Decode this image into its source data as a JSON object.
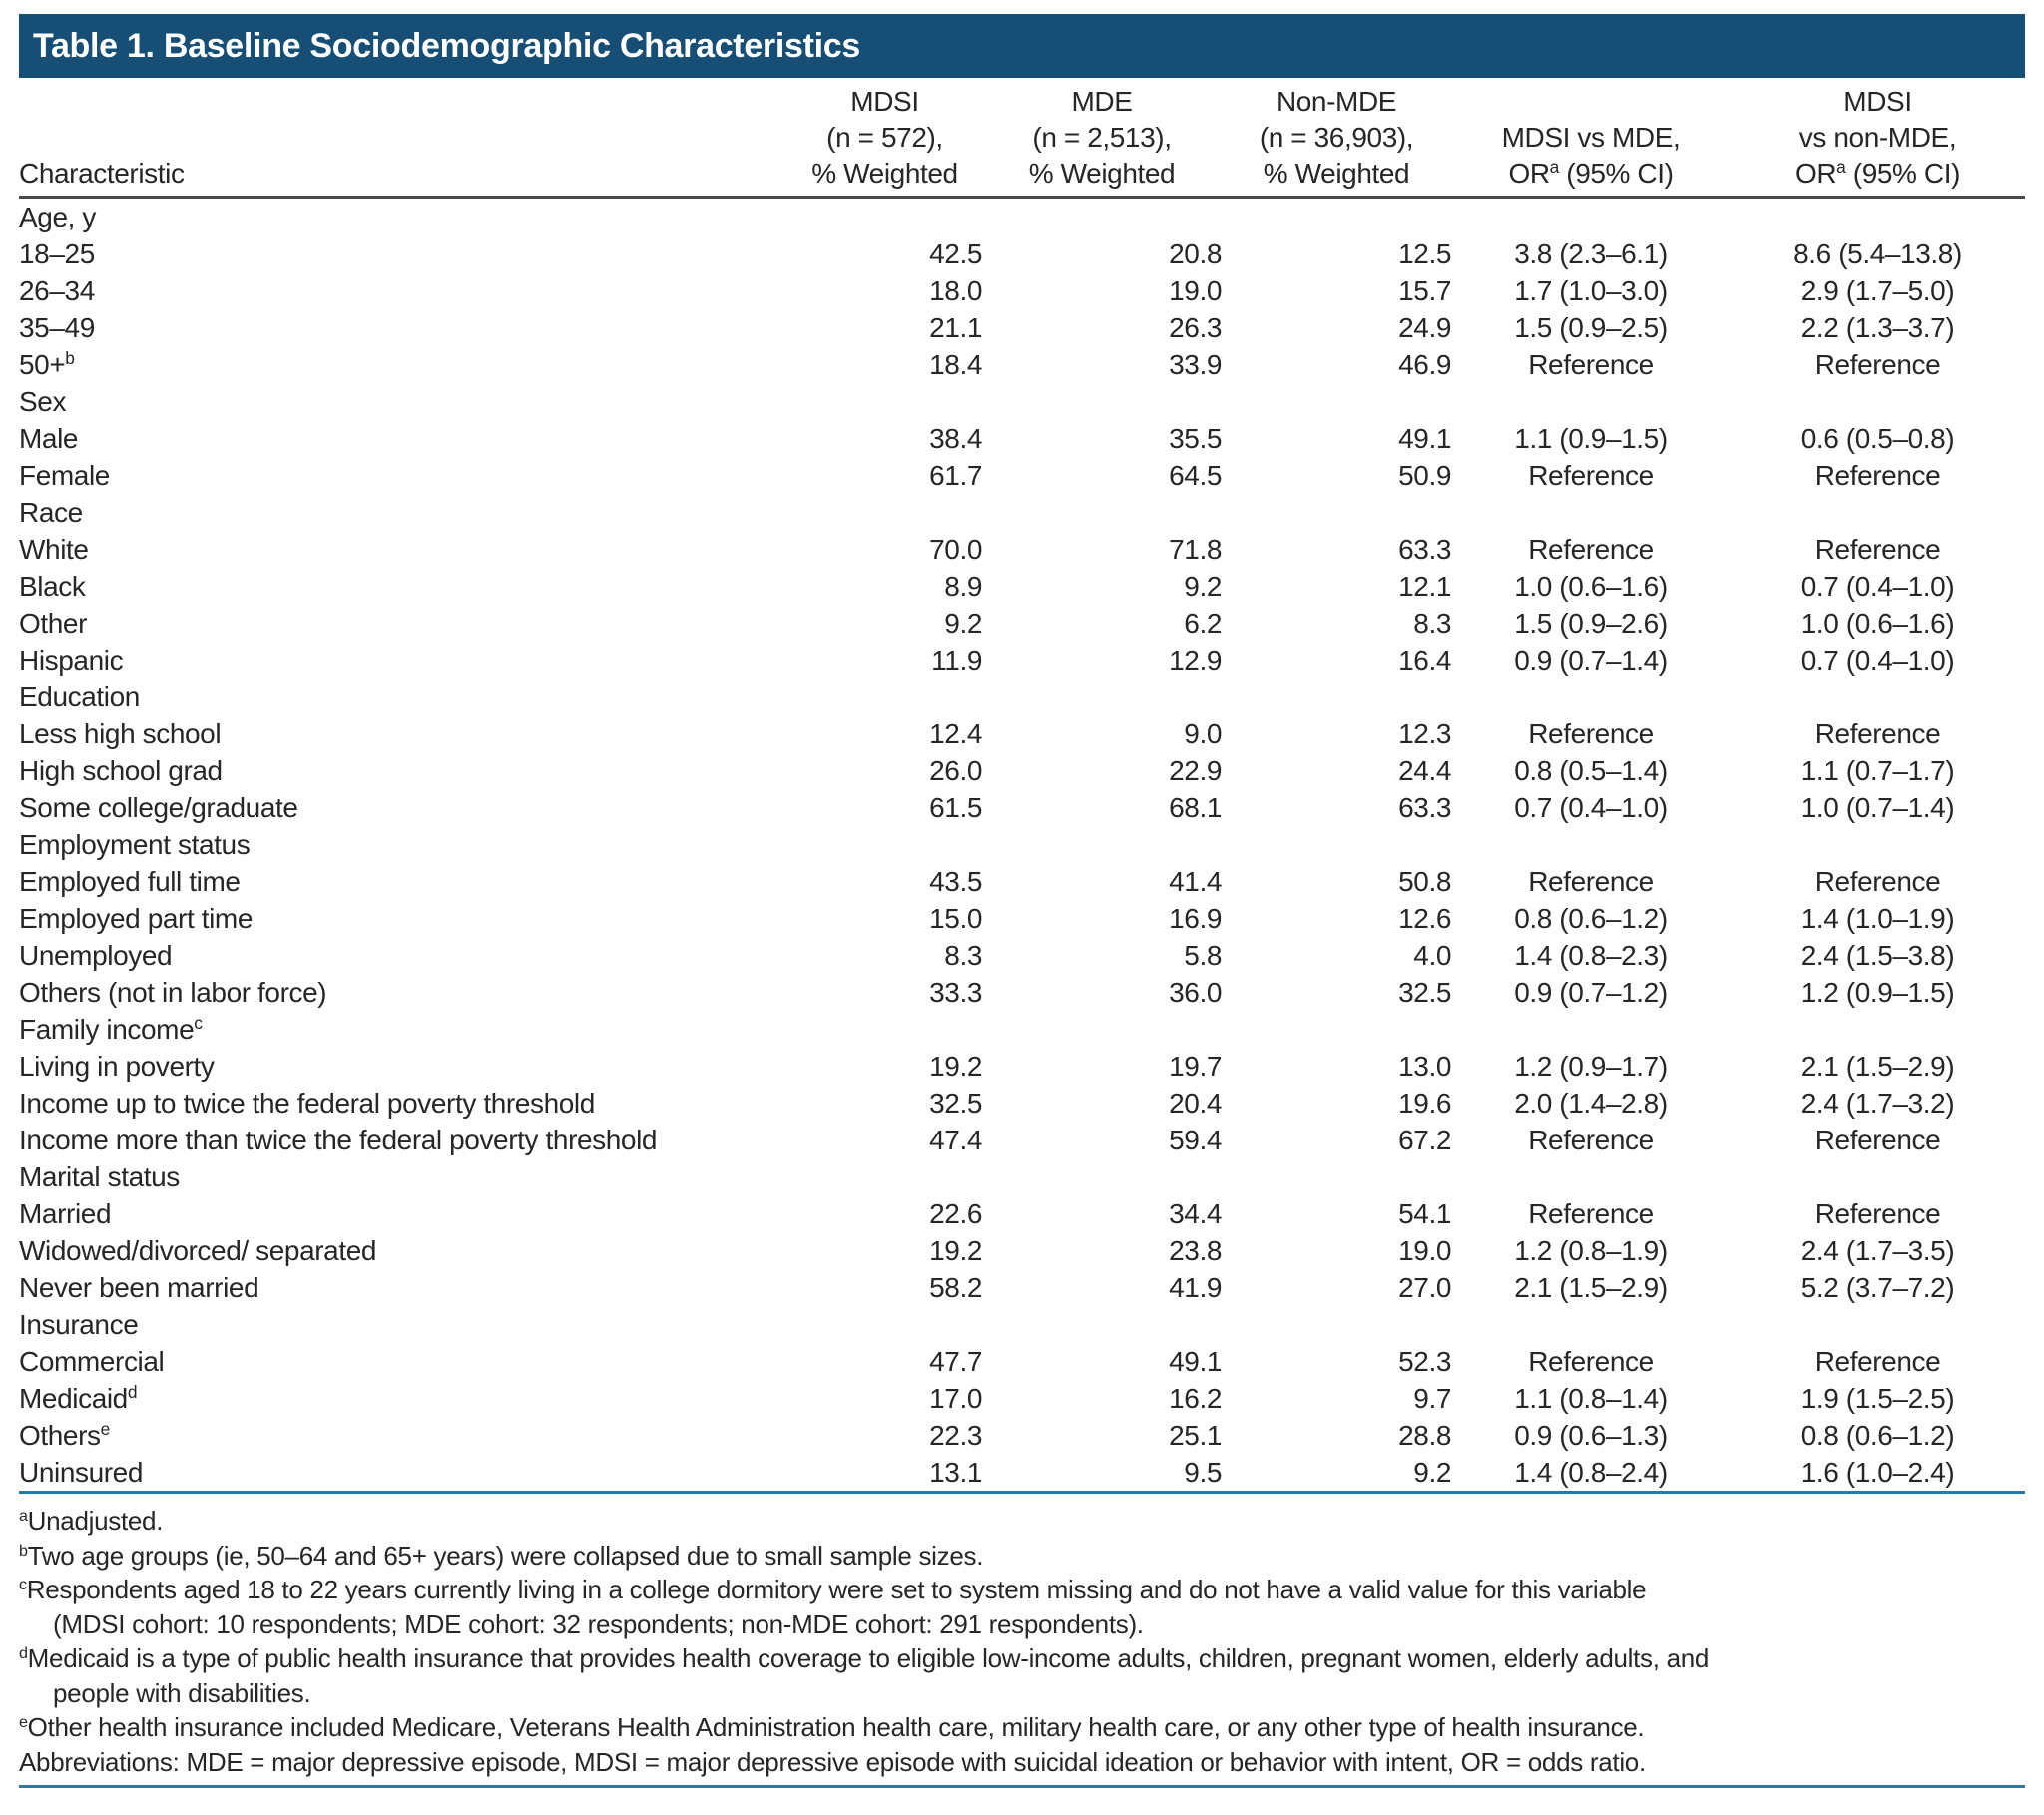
{
  "title": "Table 1. Baseline Sociodemographic Characteristics",
  "colors": {
    "header_bar": "#164e76",
    "rule_blue": "#2a7aa6",
    "rule_dark": "#4a4a4a",
    "text": "#262626"
  },
  "table": {
    "header": {
      "characteristic": "Characteristic",
      "columns": [
        {
          "name": "mdsi",
          "lines": [
            "MDSI",
            "(n = 572),",
            "% Weighted"
          ]
        },
        {
          "name": "mde",
          "lines": [
            "MDE",
            "(n = 2,513),",
            "% Weighted"
          ]
        },
        {
          "name": "non-mde",
          "lines": [
            "Non-MDE",
            "(n = 36,903),",
            "% Weighted"
          ]
        },
        {
          "name": "mdsi-vs-mde",
          "lines": [
            "MDSI vs MDE,",
            "OR^a (95% CI)"
          ]
        },
        {
          "name": "mdsi-vs-non-mde",
          "lines": [
            "MDSI",
            "vs non-MDE,",
            "OR^a (95% CI)"
          ]
        }
      ]
    },
    "sections": [
      {
        "label": "Age, y",
        "rows": [
          {
            "label": "18–25",
            "values": [
              "42.5",
              "20.8",
              "12.5",
              "3.8 (2.3–6.1)",
              "8.6 (5.4–13.8)"
            ]
          },
          {
            "label": "26–34",
            "values": [
              "18.0",
              "19.0",
              "15.7",
              "1.7 (1.0–3.0)",
              "2.9 (1.7–5.0)"
            ]
          },
          {
            "label": "35–49",
            "values": [
              "21.1",
              "26.3",
              "24.9",
              "1.5 (0.9–2.5)",
              "2.2 (1.3–3.7)"
            ]
          },
          {
            "label": "50+^b",
            "values": [
              "18.4",
              "33.9",
              "46.9",
              "Reference",
              "Reference"
            ]
          }
        ]
      },
      {
        "label": "Sex",
        "rows": [
          {
            "label": "Male",
            "values": [
              "38.4",
              "35.5",
              "49.1",
              "1.1 (0.9–1.5)",
              "0.6 (0.5–0.8)"
            ]
          },
          {
            "label": "Female",
            "values": [
              "61.7",
              "64.5",
              "50.9",
              "Reference",
              "Reference"
            ]
          }
        ]
      },
      {
        "label": "Race",
        "rows": [
          {
            "label": "White",
            "values": [
              "70.0",
              "71.8",
              "63.3",
              "Reference",
              "Reference"
            ]
          },
          {
            "label": "Black",
            "values": [
              "8.9",
              "9.2",
              "12.1",
              "1.0 (0.6–1.6)",
              "0.7 (0.4–1.0)"
            ]
          },
          {
            "label": "Other",
            "values": [
              "9.2",
              "6.2",
              "8.3",
              "1.5 (0.9–2.6)",
              "1.0 (0.6–1.6)"
            ]
          },
          {
            "label": "Hispanic",
            "values": [
              "11.9",
              "12.9",
              "16.4",
              "0.9 (0.7–1.4)",
              "0.7 (0.4–1.0)"
            ]
          }
        ]
      },
      {
        "label": "Education",
        "rows": [
          {
            "label": "Less high school",
            "values": [
              "12.4",
              "9.0",
              "12.3",
              "Reference",
              "Reference"
            ]
          },
          {
            "label": "High school grad",
            "values": [
              "26.0",
              "22.9",
              "24.4",
              "0.8 (0.5–1.4)",
              "1.1 (0.7–1.7)"
            ]
          },
          {
            "label": "Some college/graduate",
            "values": [
              "61.5",
              "68.1",
              "63.3",
              "0.7 (0.4–1.0)",
              "1.0 (0.7–1.4)"
            ]
          }
        ]
      },
      {
        "label": "Employment status",
        "rows": [
          {
            "label": "Employed full time",
            "values": [
              "43.5",
              "41.4",
              "50.8",
              "Reference",
              "Reference"
            ]
          },
          {
            "label": "Employed part time",
            "values": [
              "15.0",
              "16.9",
              "12.6",
              "0.8 (0.6–1.2)",
              "1.4 (1.0–1.9)"
            ]
          },
          {
            "label": "Unemployed",
            "values": [
              "8.3",
              "5.8",
              "4.0",
              "1.4 (0.8–2.3)",
              "2.4 (1.5–3.8)"
            ]
          },
          {
            "label": "Others (not in labor force)",
            "values": [
              "33.3",
              "36.0",
              "32.5",
              "0.9 (0.7–1.2)",
              "1.2 (0.9–1.5)"
            ]
          }
        ]
      },
      {
        "label": "Family income^c",
        "rows": [
          {
            "label": "Living in poverty",
            "values": [
              "19.2",
              "19.7",
              "13.0",
              "1.2 (0.9–1.7)",
              "2.1 (1.5–2.9)"
            ]
          },
          {
            "label": "Income up to twice the federal poverty threshold",
            "values": [
              "32.5",
              "20.4",
              "19.6",
              "2.0 (1.4–2.8)",
              "2.4 (1.7–3.2)"
            ]
          },
          {
            "label": "Income more than twice the federal poverty threshold",
            "values": [
              "47.4",
              "59.4",
              "67.2",
              "Reference",
              "Reference"
            ]
          }
        ]
      },
      {
        "label": "Marital status",
        "rows": [
          {
            "label": "Married",
            "values": [
              "22.6",
              "34.4",
              "54.1",
              "Reference",
              "Reference"
            ]
          },
          {
            "label": "Widowed/divorced/ separated",
            "values": [
              "19.2",
              "23.8",
              "19.0",
              "1.2 (0.8–1.9)",
              "2.4 (1.7–3.5)"
            ]
          },
          {
            "label": "Never been married",
            "values": [
              "58.2",
              "41.9",
              "27.0",
              "2.1 (1.5–2.9)",
              "5.2 (3.7–7.2)"
            ]
          }
        ]
      },
      {
        "label": "Insurance",
        "rows": [
          {
            "label": "Commercial",
            "values": [
              "47.7",
              "49.1",
              "52.3",
              "Reference",
              "Reference"
            ]
          },
          {
            "label": "Medicaid^d",
            "values": [
              "17.0",
              "16.2",
              "9.7",
              "1.1 (0.8–1.4)",
              "1.9 (1.5–2.5)"
            ]
          },
          {
            "label": "Others^e",
            "values": [
              "22.3",
              "25.1",
              "28.8",
              "0.9 (0.6–1.3)",
              "0.8 (0.6–1.2)"
            ]
          },
          {
            "label": "Uninsured",
            "values": [
              "13.1",
              "9.5",
              "9.2",
              "1.4 (0.8–2.4)",
              "1.6 (1.0–2.4)"
            ]
          }
        ]
      }
    ]
  },
  "footnotes": [
    {
      "marker": "a",
      "lines": [
        "Unadjusted."
      ]
    },
    {
      "marker": "b",
      "lines": [
        "Two age groups (ie, 50–64 and 65+ years) were collapsed due to small sample sizes."
      ]
    },
    {
      "marker": "c",
      "lines": [
        "Respondents aged 18 to 22 years currently living in a college dormitory were set to system missing and do not have a valid value for this variable",
        "(MDSI cohort: 10 respondents; MDE cohort: 32 respondents; non-MDE cohort: 291 respondents)."
      ]
    },
    {
      "marker": "d",
      "lines": [
        "Medicaid is a type of public health insurance that provides health coverage to eligible low-income adults, children, pregnant women, elderly adults, and",
        "people with disabilities."
      ]
    },
    {
      "marker": "e",
      "lines": [
        "Other health insurance included Medicare, Veterans Health Administration health care, military health care, or any other type of health insurance."
      ]
    },
    {
      "marker": "",
      "lines": [
        "Abbreviations: MDE = major depressive episode, MDSI = major depressive episode with suicidal ideation or behavior with intent, OR = odds ratio."
      ]
    }
  ]
}
